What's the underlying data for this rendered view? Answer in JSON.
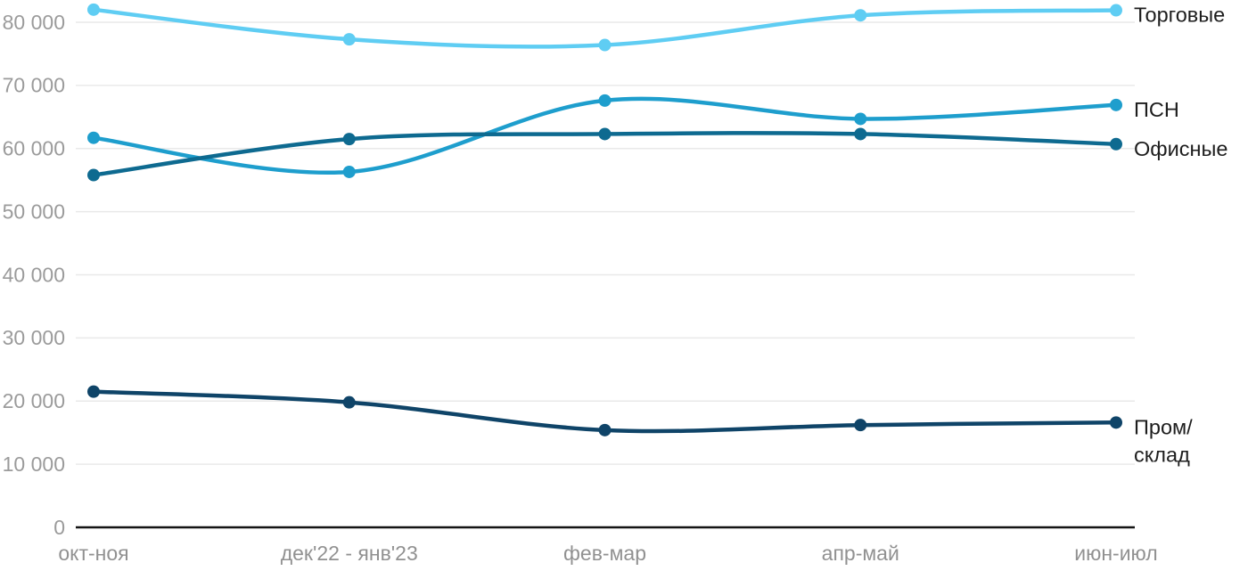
{
  "chart_data": {
    "type": "line",
    "title": "",
    "xlabel": "",
    "ylabel": "",
    "categories": [
      "окт-ноя",
      "дек'22 - янв'23",
      "фев-мар",
      "апр-май",
      "июн-июл"
    ],
    "series": [
      {
        "name": "Торговые",
        "label_lines": [
          "Торговые"
        ],
        "color": "#5FCDF3",
        "values": [
          82000,
          77300,
          76400,
          81100,
          81900
        ]
      },
      {
        "name": "ПСН",
        "label_lines": [
          "ПСН"
        ],
        "color": "#1E9ECD",
        "values": [
          61700,
          56300,
          67600,
          64700,
          66900
        ]
      },
      {
        "name": "Офисные",
        "label_lines": [
          "Офисные"
        ],
        "color": "#0E6A90",
        "values": [
          55800,
          61500,
          62300,
          62300,
          60700
        ]
      },
      {
        "name": "Пром/склад",
        "label_lines": [
          "Пром/",
          "склад"
        ],
        "color": "#0F4468",
        "values": [
          21500,
          19800,
          15400,
          16200,
          16600
        ]
      }
    ],
    "y_ticks": [
      {
        "value": 0,
        "label": "0"
      },
      {
        "value": 10000,
        "label": "10 000"
      },
      {
        "value": 20000,
        "label": "20 000"
      },
      {
        "value": 30000,
        "label": "30 000"
      },
      {
        "value": 40000,
        "label": "40 000"
      },
      {
        "value": 50000,
        "label": "50 000"
      },
      {
        "value": 60000,
        "label": "60 000"
      },
      {
        "value": 70000,
        "label": "70 000"
      },
      {
        "value": 80000,
        "label": "80 000"
      }
    ],
    "ylim": [
      0,
      80000
    ],
    "grid": true,
    "legend_position": "right-of-last-point",
    "style_colors": {
      "grid_line": "#e9e9e9",
      "axis_line": "#141414",
      "tick_label": "#9b9b9b",
      "x_label": "#919191",
      "series_label": "#1d1d1d",
      "background": "#ffffff"
    }
  }
}
